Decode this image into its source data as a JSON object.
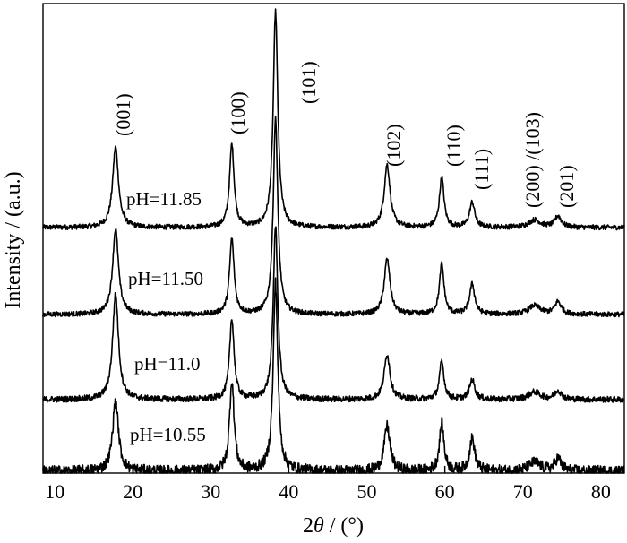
{
  "chart_data": {
    "type": "line",
    "title": "",
    "xlabel_prefix": "2",
    "xlabel_symbol": "θ",
    "xlabel_unit": " / (°)",
    "ylabel": "Intensity / (a.u.)",
    "xlim": [
      8.5,
      83
    ],
    "xticks": [
      10,
      20,
      30,
      40,
      50,
      60,
      70,
      80
    ],
    "yticks": [],
    "grid": false,
    "peaks": [
      {
        "label": "(001)",
        "x": 17.8,
        "fwhm": 0.9
      },
      {
        "label": "(100)",
        "x": 32.7,
        "fwhm": 0.7
      },
      {
        "label": "(101)",
        "x": 38.3,
        "fwhm": 0.7
      },
      {
        "label": "(102)",
        "x": 52.6,
        "fwhm": 0.9
      },
      {
        "label": "(110)",
        "x": 59.6,
        "fwhm": 0.7
      },
      {
        "label": "(111)",
        "x": 63.5,
        "fwhm": 0.8
      },
      {
        "label": "(200) /(103)",
        "x": 71.5,
        "fwhm": 1.8
      },
      {
        "label": "(201)",
        "x": 74.5,
        "fwhm": 1.0
      }
    ],
    "series": [
      {
        "name": "pH=11.85",
        "offset": 3.0,
        "noise": 0.1,
        "intensities": [
          3.2,
          3.3,
          8.6,
          2.5,
          2.0,
          1.0,
          0.3,
          0.45
        ]
      },
      {
        "name": "pH=11.50",
        "offset": 2.0,
        "noise": 0.1,
        "intensities": [
          3.4,
          3.0,
          7.8,
          2.2,
          2.0,
          1.2,
          0.35,
          0.5
        ]
      },
      {
        "name": "pH=11.0",
        "offset": 1.0,
        "noise": 0.12,
        "intensities": [
          4.2,
          3.2,
          6.9,
          1.8,
          1.5,
          0.8,
          0.3,
          0.35
        ]
      },
      {
        "name": "pH=10.55",
        "offset": 0.0,
        "noise": 0.22,
        "intensities": [
          2.8,
          3.6,
          7.5,
          1.8,
          1.9,
          1.3,
          0.35,
          0.5
        ]
      }
    ]
  }
}
